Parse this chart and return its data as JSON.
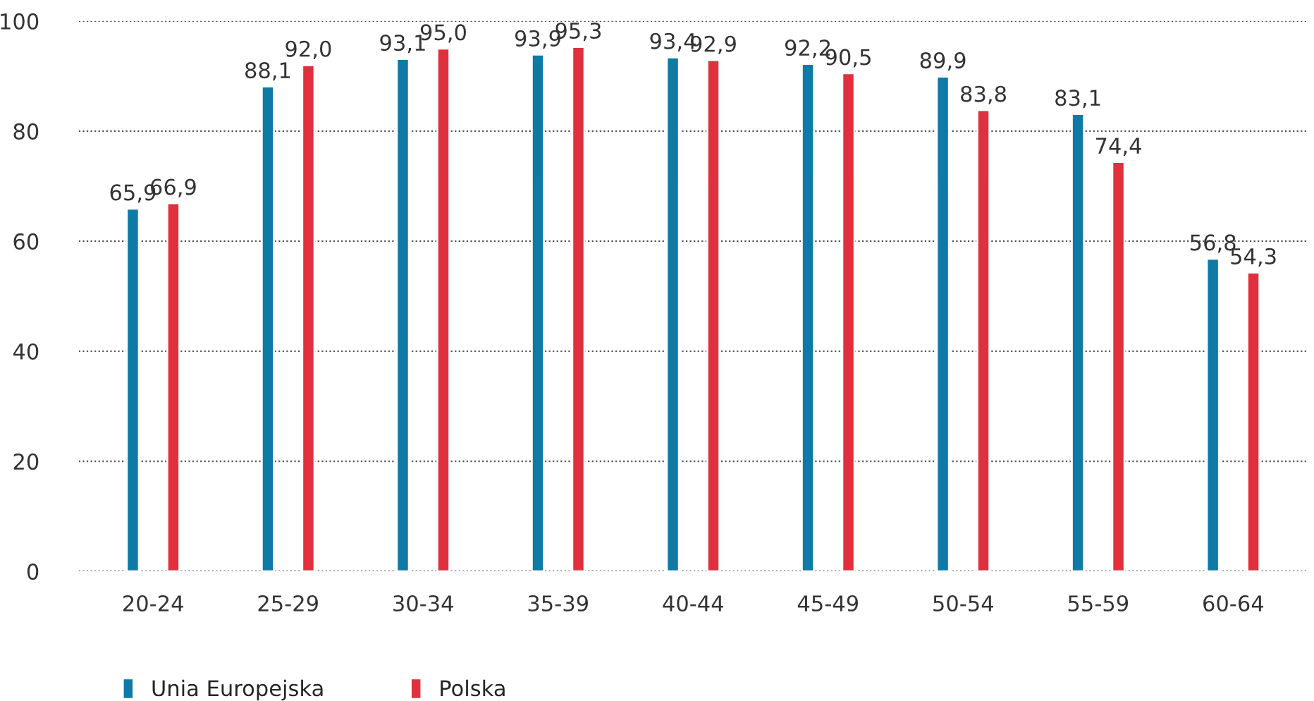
{
  "chart_data": {
    "type": "bar",
    "categories": [
      "20-24",
      "25-29",
      "30-34",
      "35-39",
      "40-44",
      "45-49",
      "50-54",
      "55-59",
      "60-64"
    ],
    "series": [
      {
        "name": "Unia Europejska",
        "color": "#0e7aa5",
        "values": [
          65.9,
          88.1,
          93.1,
          93.9,
          93.4,
          92.2,
          89.9,
          83.1,
          56.8
        ],
        "value_labels": [
          "65,9",
          "88,1",
          "93,1",
          "93,9",
          "93,4",
          "92,2",
          "89,9",
          "83,1",
          "56,8"
        ]
      },
      {
        "name": "Polska",
        "color": "#e0303e",
        "values": [
          66.9,
          92.0,
          95.0,
          95.3,
          92.9,
          90.5,
          83.8,
          74.4,
          54.3
        ],
        "value_labels": [
          "66,9",
          "92,0",
          "95,0",
          "95,3",
          "92,9",
          "90,5",
          "83,8",
          "74,4",
          "54,3"
        ]
      }
    ],
    "ylim": [
      0,
      100
    ],
    "yticks": [
      0,
      20,
      40,
      60,
      80,
      100
    ],
    "grid": "y",
    "legend": "bottom left"
  }
}
